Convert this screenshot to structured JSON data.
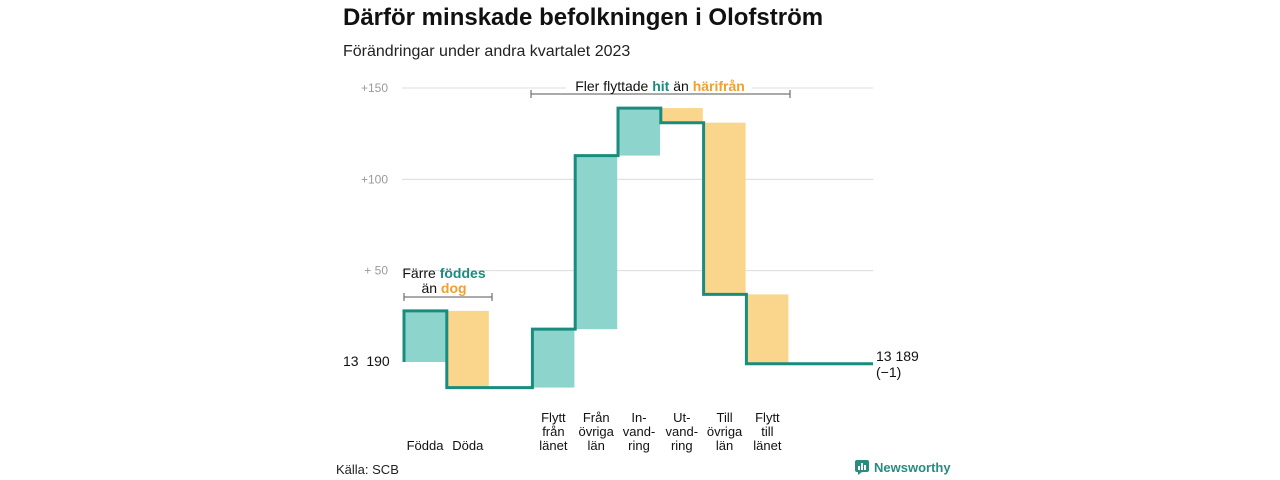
{
  "title": "Därför minskade befolkningen i Olofström",
  "subtitle": "Förändringar under andra kvartalet 2023",
  "source": "Källa: SCB",
  "brand": "Newsworthy",
  "colors": {
    "increase": "#8dd5cc",
    "decrease": "#fad58c",
    "line": "#1a8c7e",
    "teal_text": "#1a8c7e",
    "orange_text": "#f0a030"
  },
  "annotations": {
    "births_deaths": {
      "line1_prefix": "Färre ",
      "line1_highlight": "föddes",
      "line2_prefix": "än ",
      "line2_highlight": "dog"
    },
    "migration": {
      "prefix": "Fler flyttade ",
      "highlight_a": "hit",
      "middle": " än ",
      "highlight_b": "härifrån"
    }
  },
  "chart_data": {
    "type": "waterfall",
    "title": "Därför minskade befolkningen i Olofström",
    "subtitle": "Förändringar under andra kvartalet 2023",
    "baseline_label": "13  190",
    "end_label_1": "13 189",
    "end_label_2": "(−1)",
    "baseline": 13190,
    "end_value": 13189,
    "ylim": [
      -15,
      150
    ],
    "yticks": [
      {
        "value": 150,
        "label": "+150"
      },
      {
        "value": 100,
        "label": "+100"
      },
      {
        "value": 50,
        "label": "+  50"
      }
    ],
    "grid": true,
    "steps": [
      {
        "label": [
          "Födda"
        ],
        "start": 0,
        "end": 28,
        "kind": "increase"
      },
      {
        "label": [
          "Döda"
        ],
        "start": 28,
        "end": -14,
        "kind": "decrease"
      },
      {
        "label": [
          "Flytt",
          "från",
          "länet"
        ],
        "start": -14,
        "end": 18,
        "kind": "increase"
      },
      {
        "label": [
          "Från",
          "övriga",
          "län"
        ],
        "start": 18,
        "end": 113,
        "kind": "increase"
      },
      {
        "label": [
          "In-",
          "vand-",
          "ring"
        ],
        "start": 113,
        "end": 139,
        "kind": "increase"
      },
      {
        "label": [
          "Ut-",
          "vand-",
          "ring"
        ],
        "start": 139,
        "end": 131,
        "kind": "decrease"
      },
      {
        "label": [
          "Till",
          "övriga",
          "län"
        ],
        "start": 131,
        "end": 37,
        "kind": "decrease"
      },
      {
        "label": [
          "Flytt",
          "till",
          "länet"
        ],
        "start": 37,
        "end": -1,
        "kind": "decrease"
      }
    ]
  }
}
